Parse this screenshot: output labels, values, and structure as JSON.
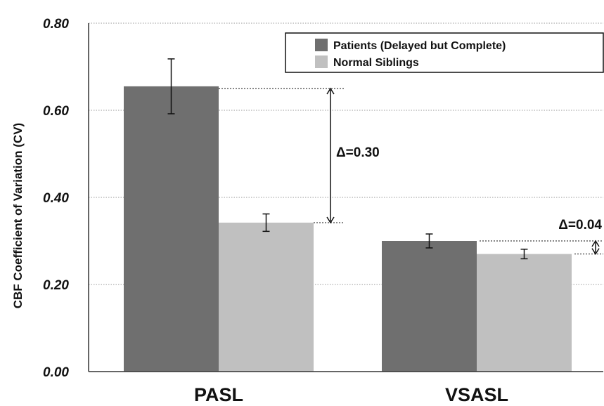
{
  "chart_data": {
    "type": "bar",
    "ylabel": "CBF Coefficient of Variation (CV)",
    "ylim": [
      0,
      0.8
    ],
    "yticks": [
      "0.00",
      "0.20",
      "0.40",
      "0.60",
      "0.80"
    ],
    "grid": "horizontal dotted",
    "legend_position": "top-right",
    "categories": [
      "PASL",
      "VSASL"
    ],
    "series": [
      {
        "name": "Patients (Delayed but Complete)",
        "color": "#6f6f6f",
        "values": [
          0.655,
          0.3
        ],
        "errors": [
          0.063,
          0.016
        ]
      },
      {
        "name": "Normal Siblings",
        "color": "#c0c0c0",
        "values": [
          0.342,
          0.27
        ],
        "errors": [
          0.02,
          0.011
        ]
      }
    ],
    "annotations": [
      {
        "label": "Δ=0.30",
        "category": "PASL",
        "from": 0.342,
        "to": 0.65
      },
      {
        "label": "Δ=0.04",
        "category": "VSASL",
        "from": 0.27,
        "to": 0.3
      }
    ]
  }
}
